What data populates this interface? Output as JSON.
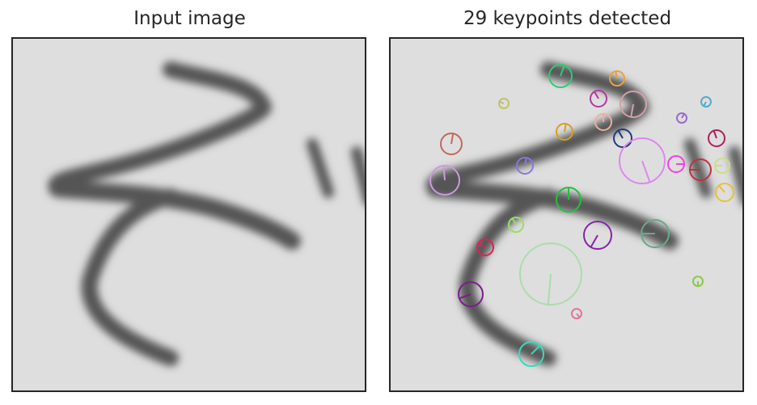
{
  "left_panel": {
    "title": "Input image"
  },
  "right_panel": {
    "title": "29 keypoints detected"
  },
  "image": {
    "background": "#e0e0e0",
    "stroke_color": "#4f4f4f"
  },
  "keypoints": [
    {
      "color": "#2ecc71"
    },
    {
      "color": "#e6a43c"
    },
    {
      "color": "#b03a9c"
    },
    {
      "color": "#d4a0a8"
    },
    {
      "color": "#e8b0a0"
    },
    {
      "color": "#d4a020"
    },
    {
      "color": "#1f3a78"
    },
    {
      "color": "#c06a5c"
    },
    {
      "color": "#cc99dd"
    },
    {
      "color": "#8877dd"
    },
    {
      "color": "#dd88ee"
    },
    {
      "color": "#ee44dd"
    },
    {
      "color": "#bb3344"
    },
    {
      "color": "#aa2255"
    },
    {
      "color": "#ccdd88"
    },
    {
      "color": "#e8c040"
    },
    {
      "color": "#22c040"
    },
    {
      "color": "#99dd66"
    },
    {
      "color": "#dd2255"
    },
    {
      "color": "#8822aa"
    },
    {
      "color": "#66aa88"
    },
    {
      "color": "#aaddaa"
    },
    {
      "color": "#7a1f8a"
    },
    {
      "color": "#33ddbb"
    },
    {
      "color": "#9a6ad0"
    },
    {
      "color": "#c0c070"
    },
    {
      "color": "#55aacc"
    },
    {
      "color": "#dd7799"
    },
    {
      "color": "#88cc44"
    }
  ]
}
